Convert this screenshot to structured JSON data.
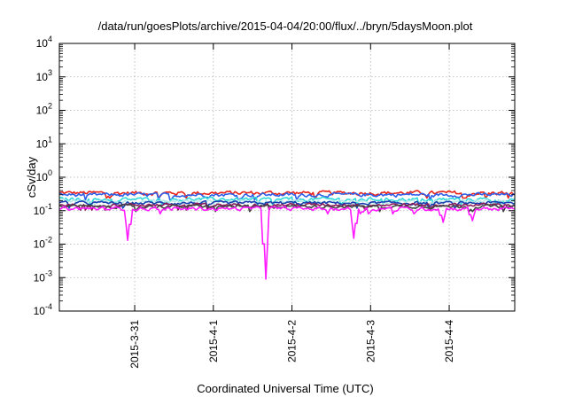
{
  "chart_data": {
    "type": "line",
    "title": "/data/run/goesPlots/archive/2015-04-04/20:00/flux/../bryn/5daysMoon.plot",
    "xlabel": "Coordinated Universal Time (UTC)",
    "ylabel": "cSv/day",
    "yscale": "log",
    "ylim": [
      0.0001,
      10000
    ],
    "y_ticks": [
      {
        "value": 0.0001,
        "base": "10",
        "exp": "-4"
      },
      {
        "value": 0.001,
        "base": "10",
        "exp": "-3"
      },
      {
        "value": 0.01,
        "base": "10",
        "exp": "-2"
      },
      {
        "value": 0.1,
        "base": "10",
        "exp": "-1"
      },
      {
        "value": 1,
        "base": "10",
        "exp": "0"
      },
      {
        "value": 10,
        "base": "10",
        "exp": "1"
      },
      {
        "value": 100,
        "base": "10",
        "exp": "2"
      },
      {
        "value": 1000,
        "base": "10",
        "exp": "3"
      },
      {
        "value": 10000,
        "base": "10",
        "exp": "4"
      }
    ],
    "xlim": [
      "2015-03-30 01:00",
      "2015-04-04 20:00"
    ],
    "x_ticks": [
      {
        "value": "2015-03-31 00:00",
        "label": "2015-3-31"
      },
      {
        "value": "2015-04-01 00:00",
        "label": "2015-4-1"
      },
      {
        "value": "2015-04-02 00:00",
        "label": "2015-4-2"
      },
      {
        "value": "2015-04-03 00:00",
        "label": "2015-4-3"
      },
      {
        "value": "2015-04-04 00:00",
        "label": "2015-4-4"
      }
    ],
    "grid": true,
    "series": [
      {
        "color": "#e8231a",
        "base": 0.34,
        "spread": 0.1
      },
      {
        "color": "#2f5fe8",
        "base": 0.3,
        "spread": 0.08
      },
      {
        "color": "#2fd8d8",
        "base": 0.22,
        "spread": 0.06
      },
      {
        "color": "#b8e8e8",
        "base": 0.19,
        "spread": 0.05
      },
      {
        "color": "#1a3fb0",
        "base": 0.17,
        "spread": 0.04
      },
      {
        "color": "#8a1a5a",
        "base": 0.15,
        "spread": 0.035
      },
      {
        "color": "#444444",
        "base": 0.135,
        "spread": 0.03
      },
      {
        "color": "#ff1aff",
        "base": 0.115,
        "spread": 0.03,
        "dips": [
          {
            "t": "2015-03-30 22:00",
            "y": 0.013
          },
          {
            "t": "2015-04-01 16:00",
            "y": 0.0009
          },
          {
            "t": "2015-04-02 19:00",
            "y": 0.015
          },
          {
            "t": "2015-04-03 22:00",
            "y": 0.045
          },
          {
            "t": "2015-04-04 07:00",
            "y": 0.05
          }
        ]
      }
    ]
  }
}
